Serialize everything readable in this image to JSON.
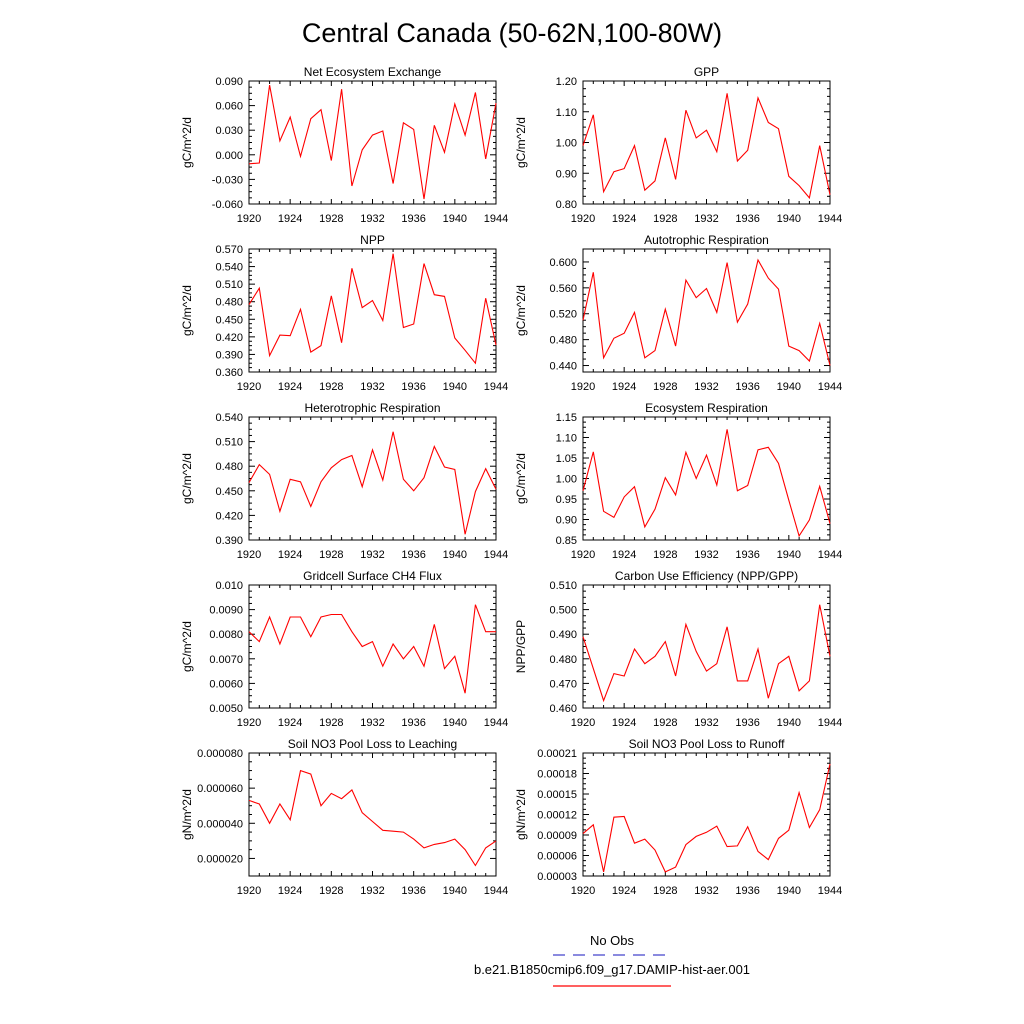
{
  "title": "Central Canada (50-62N,100-80W)",
  "colors": {
    "series": "#ff0000",
    "obs": "#4444cc",
    "axis": "#000000"
  },
  "legend": {
    "obs_label": "No Obs",
    "model_label": "b.e21.B1850cmip6.f09_g17.DAMIP-hist-aer.001"
  },
  "chart_data": [
    {
      "type": "line",
      "title": "Net Ecosystem Exchange",
      "ylabel": "gC/m^2/d",
      "x": [
        1920,
        1921,
        1922,
        1923,
        1924,
        1925,
        1926,
        1927,
        1928,
        1929,
        1930,
        1931,
        1932,
        1933,
        1934,
        1935,
        1936,
        1937,
        1938,
        1939,
        1940,
        1941,
        1942,
        1943,
        1944
      ],
      "values": [
        -0.011,
        -0.01,
        0.085,
        0.017,
        0.046,
        -0.002,
        0.044,
        0.055,
        -0.007,
        0.08,
        -0.038,
        0.006,
        0.024,
        0.029,
        -0.035,
        0.039,
        0.031,
        -0.054,
        0.036,
        0.003,
        0.062,
        0.024,
        0.076,
        -0.005,
        0.063
      ],
      "xlim": [
        1920,
        1944
      ],
      "ylim": [
        -0.06,
        0.09
      ],
      "xticks": [
        1920,
        1924,
        1928,
        1932,
        1936,
        1940,
        1944
      ],
      "yticks": [
        "0.090",
        "0.060",
        "0.030",
        "0.000",
        "-0.030",
        "-0.060"
      ]
    },
    {
      "type": "line",
      "title": "GPP",
      "ylabel": "gC/m^2/d",
      "x": [
        1920,
        1921,
        1922,
        1923,
        1924,
        1925,
        1926,
        1927,
        1928,
        1929,
        1930,
        1931,
        1932,
        1933,
        1934,
        1935,
        1936,
        1937,
        1938,
        1939,
        1940,
        1941,
        1942,
        1943,
        1944
      ],
      "values": [
        0.99,
        1.09,
        0.84,
        0.905,
        0.915,
        0.99,
        0.845,
        0.875,
        1.015,
        0.88,
        1.105,
        1.015,
        1.04,
        0.97,
        1.16,
        0.94,
        0.975,
        1.145,
        1.065,
        1.045,
        0.89,
        0.86,
        0.82,
        0.99,
        0.83
      ],
      "xlim": [
        1920,
        1944
      ],
      "ylim": [
        0.8,
        1.2
      ],
      "xticks": [
        1920,
        1924,
        1928,
        1932,
        1936,
        1940,
        1944
      ],
      "yticks": [
        "1.20",
        "1.10",
        "1.00",
        "0.90",
        "0.80"
      ]
    },
    {
      "type": "line",
      "title": "NPP",
      "ylabel": "gC/m^2/d",
      "x": [
        1920,
        1921,
        1922,
        1923,
        1924,
        1925,
        1926,
        1927,
        1928,
        1929,
        1930,
        1931,
        1932,
        1933,
        1934,
        1935,
        1936,
        1937,
        1938,
        1939,
        1940,
        1941,
        1942,
        1943,
        1944
      ],
      "values": [
        0.475,
        0.503,
        0.388,
        0.423,
        0.422,
        0.467,
        0.394,
        0.405,
        0.49,
        0.41,
        0.537,
        0.47,
        0.482,
        0.448,
        0.562,
        0.436,
        0.442,
        0.545,
        0.492,
        0.489,
        0.418,
        0.397,
        0.375,
        0.486,
        0.406
      ],
      "xlim": [
        1920,
        1944
      ],
      "ylim": [
        0.36,
        0.57
      ],
      "xticks": [
        1920,
        1924,
        1928,
        1932,
        1936,
        1940,
        1944
      ],
      "yticks": [
        "0.570",
        "0.540",
        "0.510",
        "0.480",
        "0.450",
        "0.420",
        "0.390",
        "0.360"
      ]
    },
    {
      "type": "line",
      "title": "Autotrophic Respiration",
      "ylabel": "gC/m^2/d",
      "x": [
        1920,
        1921,
        1922,
        1923,
        1924,
        1925,
        1926,
        1927,
        1928,
        1929,
        1930,
        1931,
        1932,
        1933,
        1934,
        1935,
        1936,
        1937,
        1938,
        1939,
        1940,
        1941,
        1942,
        1943,
        1944
      ],
      "values": [
        0.51,
        0.584,
        0.452,
        0.482,
        0.49,
        0.522,
        0.452,
        0.463,
        0.527,
        0.47,
        0.572,
        0.545,
        0.559,
        0.522,
        0.599,
        0.507,
        0.535,
        0.603,
        0.575,
        0.558,
        0.47,
        0.463,
        0.447,
        0.505,
        0.44
      ],
      "xlim": [
        1920,
        1944
      ],
      "ylim": [
        0.43,
        0.62
      ],
      "xticks": [
        1920,
        1924,
        1928,
        1932,
        1936,
        1940,
        1944
      ],
      "yticks": [
        "0.600",
        "0.560",
        "0.520",
        "0.480",
        "0.440"
      ]
    },
    {
      "type": "line",
      "title": "Heterotrophic Respiration",
      "ylabel": "gC/m^2/d",
      "x": [
        1920,
        1921,
        1922,
        1923,
        1924,
        1925,
        1926,
        1927,
        1928,
        1929,
        1930,
        1931,
        1932,
        1933,
        1934,
        1935,
        1936,
        1937,
        1938,
        1939,
        1940,
        1941,
        1942,
        1943,
        1944
      ],
      "values": [
        0.46,
        0.482,
        0.47,
        0.425,
        0.464,
        0.461,
        0.431,
        0.461,
        0.478,
        0.488,
        0.493,
        0.455,
        0.5,
        0.463,
        0.522,
        0.464,
        0.45,
        0.466,
        0.504,
        0.479,
        0.476,
        0.397,
        0.449,
        0.477,
        0.452
      ],
      "xlim": [
        1920,
        1944
      ],
      "ylim": [
        0.39,
        0.54
      ],
      "xticks": [
        1920,
        1924,
        1928,
        1932,
        1936,
        1940,
        1944
      ],
      "yticks": [
        "0.540",
        "0.510",
        "0.480",
        "0.450",
        "0.420",
        "0.390"
      ]
    },
    {
      "type": "line",
      "title": "Ecosystem Respiration",
      "ylabel": "gC/m^2/d",
      "x": [
        1920,
        1921,
        1922,
        1923,
        1924,
        1925,
        1926,
        1927,
        1928,
        1929,
        1930,
        1931,
        1932,
        1933,
        1934,
        1935,
        1936,
        1937,
        1938,
        1939,
        1940,
        1941,
        1942,
        1943,
        1944
      ],
      "values": [
        0.97,
        1.065,
        0.92,
        0.905,
        0.955,
        0.98,
        0.882,
        0.925,
        1.002,
        0.96,
        1.064,
        1.0,
        1.057,
        0.984,
        1.12,
        0.97,
        0.983,
        1.07,
        1.076,
        1.037,
        0.947,
        0.86,
        0.899,
        0.981,
        0.89
      ],
      "xlim": [
        1920,
        1944
      ],
      "ylim": [
        0.85,
        1.15
      ],
      "xticks": [
        1920,
        1924,
        1928,
        1932,
        1936,
        1940,
        1944
      ],
      "yticks": [
        "1.15",
        "1.10",
        "1.05",
        "1.00",
        "0.95",
        "0.90",
        "0.85"
      ]
    },
    {
      "type": "line",
      "title": "Gridcell Surface CH4 Flux",
      "ylabel": "gC/m^2/d",
      "x": [
        1920,
        1921,
        1922,
        1923,
        1924,
        1925,
        1926,
        1927,
        1928,
        1929,
        1930,
        1931,
        1932,
        1933,
        1934,
        1935,
        1936,
        1937,
        1938,
        1939,
        1940,
        1941,
        1942,
        1943,
        1944
      ],
      "values": [
        0.0081,
        0.0077,
        0.0087,
        0.0076,
        0.0087,
        0.0087,
        0.0079,
        0.0087,
        0.0088,
        0.0088,
        0.0081,
        0.0075,
        0.0077,
        0.0067,
        0.0076,
        0.007,
        0.0075,
        0.0067,
        0.0084,
        0.0066,
        0.0071,
        0.0056,
        0.0092,
        0.0081,
        0.0081
      ],
      "xlim": [
        1920,
        1944
      ],
      "ylim": [
        0.005,
        0.01
      ],
      "xticks": [
        1920,
        1924,
        1928,
        1932,
        1936,
        1940,
        1944
      ],
      "yticks": [
        "0.010",
        "0.0090",
        "0.0080",
        "0.0070",
        "0.0060",
        "0.0050"
      ]
    },
    {
      "type": "line",
      "title": "Carbon Use Efficiency (NPP/GPP)",
      "ylabel": "NPP/GPP",
      "x": [
        1920,
        1921,
        1922,
        1923,
        1924,
        1925,
        1926,
        1927,
        1928,
        1929,
        1930,
        1931,
        1932,
        1933,
        1934,
        1935,
        1936,
        1937,
        1938,
        1939,
        1940,
        1941,
        1942,
        1943,
        1944
      ],
      "values": [
        0.489,
        0.476,
        0.463,
        0.474,
        0.473,
        0.484,
        0.478,
        0.481,
        0.487,
        0.473,
        0.494,
        0.483,
        0.475,
        0.478,
        0.493,
        0.471,
        0.471,
        0.484,
        0.464,
        0.478,
        0.481,
        0.467,
        0.471,
        0.502,
        0.481
      ],
      "xlim": [
        1920,
        1944
      ],
      "ylim": [
        0.46,
        0.51
      ],
      "xticks": [
        1920,
        1924,
        1928,
        1932,
        1936,
        1940,
        1944
      ],
      "yticks": [
        "0.510",
        "0.500",
        "0.490",
        "0.480",
        "0.470",
        "0.460"
      ]
    },
    {
      "type": "line",
      "title": "Soil NO3 Pool Loss to Leaching",
      "ylabel": "gN/m^2/d",
      "x": [
        1920,
        1921,
        1922,
        1923,
        1924,
        1925,
        1926,
        1927,
        1928,
        1929,
        1930,
        1931,
        1932,
        1933,
        1934,
        1935,
        1936,
        1937,
        1938,
        1939,
        1940,
        1941,
        1942,
        1943,
        1944
      ],
      "values": [
        5.3e-05,
        5.1e-05,
        4e-05,
        5.1e-05,
        4.2e-05,
        7e-05,
        6.8e-05,
        5e-05,
        5.7e-05,
        5.4e-05,
        5.9e-05,
        4.6e-05,
        4.1e-05,
        3.6e-05,
        3.55e-05,
        3.5e-05,
        3.1e-05,
        2.6e-05,
        2.8e-05,
        2.9e-05,
        3.1e-05,
        2.5e-05,
        1.6e-05,
        2.6e-05,
        3e-05
      ],
      "xlim": [
        1920,
        1944
      ],
      "ylim": [
        1e-05,
        8e-05
      ],
      "xticks": [
        1920,
        1924,
        1928,
        1932,
        1936,
        1940,
        1944
      ],
      "yticks": [
        "0.000080",
        "0.000060",
        "0.000040",
        "0.000020"
      ]
    },
    {
      "type": "line",
      "title": "Soil NO3 Pool Loss to Runoff",
      "ylabel": "gN/m^2/d",
      "x": [
        1920,
        1921,
        1922,
        1923,
        1924,
        1925,
        1926,
        1927,
        1928,
        1929,
        1930,
        1931,
        1932,
        1933,
        1934,
        1935,
        1936,
        1937,
        1938,
        1939,
        1940,
        1941,
        1942,
        1943,
        1944
      ],
      "values": [
        9.2e-05,
        0.000105,
        3.6e-05,
        0.000116,
        0.000117,
        7.8e-05,
        8.4e-05,
        6.8e-05,
        3.6e-05,
        4.3e-05,
        7.6e-05,
        8.8e-05,
        9.4e-05,
        0.000103,
        7.3e-05,
        7.4e-05,
        0.000102,
        6.6e-05,
        5.4e-05,
        8.5e-05,
        9.7e-05,
        0.000152,
        0.000101,
        0.000127,
        0.000194
      ],
      "xlim": [
        1920,
        1944
      ],
      "ylim": [
        3e-05,
        0.00021
      ],
      "xticks": [
        1920,
        1924,
        1928,
        1932,
        1936,
        1940,
        1944
      ],
      "yticks": [
        "0.00021",
        "0.00018",
        "0.00015",
        "0.00012",
        "0.00009",
        "0.00006",
        "0.00003"
      ]
    }
  ]
}
